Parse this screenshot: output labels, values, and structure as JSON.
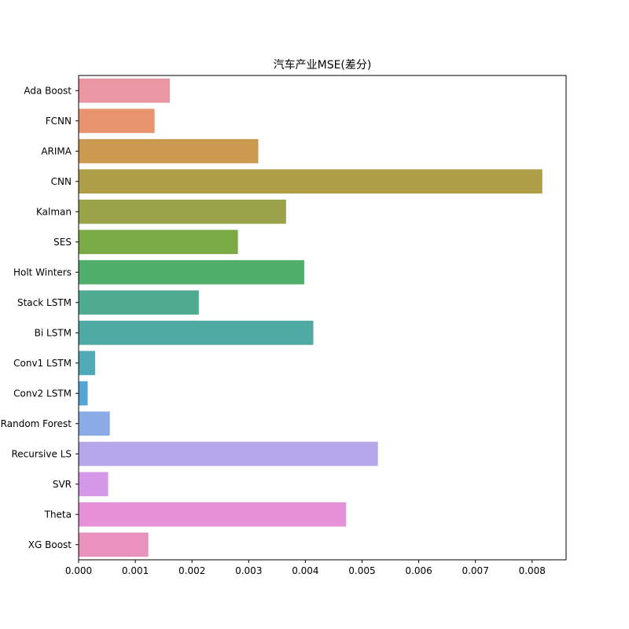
{
  "chart_data": {
    "type": "bar",
    "orientation": "horizontal",
    "title": "汽车产业MSE(差分)",
    "xlabel": "",
    "ylabel": "",
    "xlim": [
      0,
      0.0086
    ],
    "xticks": [
      "0.000",
      "0.001",
      "0.002",
      "0.003",
      "0.004",
      "0.005",
      "0.006",
      "0.007",
      "0.008"
    ],
    "grid": false,
    "categories": [
      "Ada Boost ",
      "FCNN",
      "ARIMA",
      "CNN",
      "Kalman",
      "SES",
      "Holt Winters",
      "Stack LSTM",
      "Bi LSTM",
      "Conv1 LSTM",
      "Conv2 LSTM",
      "Random Forest",
      "Recursive LS",
      "SVR",
      "Theta",
      "XG Boost"
    ],
    "values": [
      0.00161,
      0.00134,
      0.00317,
      0.00818,
      0.00366,
      0.00281,
      0.00398,
      0.00212,
      0.00414,
      0.00029,
      0.00016,
      0.00055,
      0.00528,
      0.00052,
      0.00472,
      0.00123
    ],
    "colors": [
      "#ea96a3",
      "#e8956f",
      "#cb9a50",
      "#ae9e47",
      "#9aa24a",
      "#79aa46",
      "#4fae6a",
      "#4eab90",
      "#4eaaa2",
      "#50a8b8",
      "#54a5d4",
      "#8babe6",
      "#b6a7ea",
      "#d597e7",
      "#e690d8",
      "#e992bd"
    ]
  }
}
